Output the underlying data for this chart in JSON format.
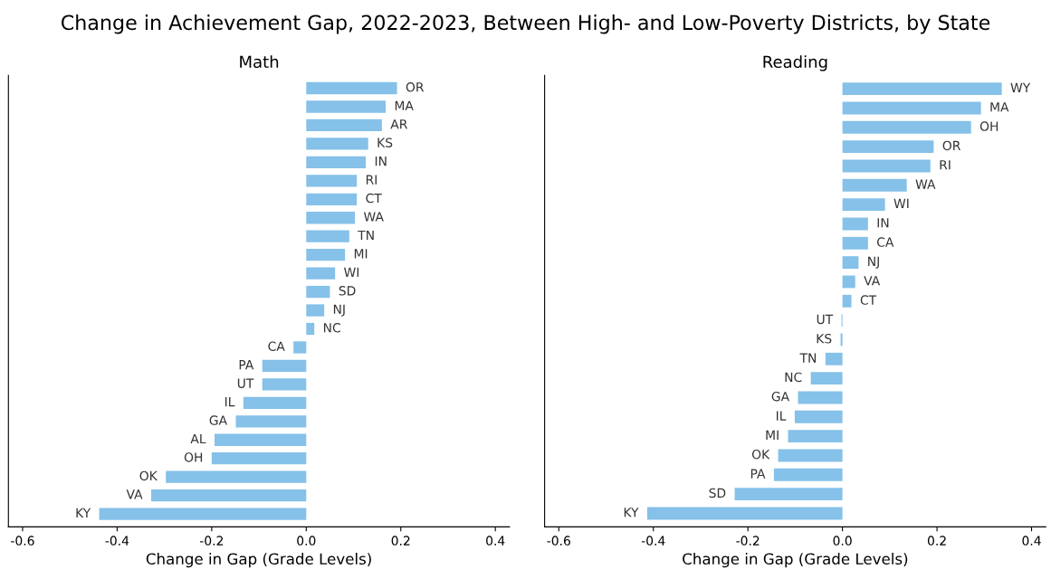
{
  "chart_data": [
    {
      "type": "bar",
      "orientation": "horizontal",
      "annotations": [
        "Change in Achievement Gap, 2022-2023, Between High- and Low-Poverty Districts, by State"
      ],
      "title": "Math",
      "xlabel": "Change in Gap (Grade Levels)",
      "color": "#85c1e9",
      "xlim": [
        -0.63,
        0.43
      ],
      "xticks": [
        -0.6,
        -0.4,
        -0.2,
        {
          "value": 0,
          "label": "0.0"
        },
        0.2,
        0.4
      ],
      "tick_labels": "x",
      "grid": false,
      "legend": false,
      "categories": [
        "OR",
        "MA",
        "AR",
        "KS",
        "IN",
        "RI",
        "CT",
        "WA",
        "TN",
        "MI",
        "WI",
        "SD",
        "NJ",
        "NC",
        "CA",
        "PA",
        "UT",
        "IL",
        "GA",
        "AL",
        "OH",
        "OK",
        "VA",
        "KY"
      ],
      "values": [
        0.192,
        0.168,
        0.16,
        0.131,
        0.126,
        0.107,
        0.107,
        0.103,
        0.091,
        0.082,
        0.061,
        0.05,
        0.038,
        0.017,
        -0.027,
        -0.093,
        -0.093,
        -0.133,
        -0.149,
        -0.194,
        -0.2,
        -0.297,
        -0.328,
        -0.438
      ]
    },
    {
      "type": "bar",
      "orientation": "horizontal",
      "title": "Reading",
      "xlabel": "Change in Gap (Grade Levels)",
      "color": "#85c1e9",
      "xlim": [
        -0.63,
        0.43
      ],
      "xticks": [
        -0.6,
        -0.4,
        -0.2,
        {
          "value": 0,
          "label": "0.0"
        },
        0.2,
        0.4
      ],
      "tick_labels": "x",
      "grid": false,
      "legend": false,
      "categories": [
        "WY",
        "MA",
        "OH",
        "OR",
        "RI",
        "WA",
        "WI",
        "IN",
        "CA",
        "NJ",
        "VA",
        "CT",
        "UT",
        "KS",
        "TN",
        "NC",
        "GA",
        "IL",
        "MI",
        "OK",
        "PA",
        "SD",
        "KY"
      ],
      "values": [
        0.337,
        0.293,
        0.272,
        0.193,
        0.186,
        0.136,
        0.09,
        0.054,
        0.054,
        0.034,
        0.027,
        0.019,
        -0.002,
        -0.004,
        -0.036,
        -0.067,
        -0.094,
        -0.101,
        -0.115,
        -0.136,
        -0.145,
        -0.228,
        -0.413
      ]
    }
  ]
}
